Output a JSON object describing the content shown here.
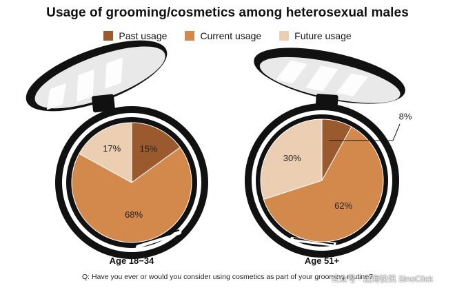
{
  "chart_data": {
    "type": "pie",
    "title": "Usage of grooming/cosmetics among heterosexual males",
    "legend": {
      "placement": "top-center",
      "entries": [
        {
          "key": "past",
          "label": "Past usage",
          "color": "#9b5a2e"
        },
        {
          "key": "current",
          "label": "Current usage",
          "color": "#d3894c"
        },
        {
          "key": "future",
          "label": "Future usage",
          "color": "#ecceb2"
        }
      ]
    },
    "charts": [
      {
        "label": "Age 18−34",
        "slices": [
          {
            "key": "past",
            "value": 15,
            "label": "15%"
          },
          {
            "key": "current",
            "value": 68,
            "label": "68%"
          },
          {
            "key": "future",
            "value": 17,
            "label": "17%"
          }
        ]
      },
      {
        "label": "Age 51+",
        "slices": [
          {
            "key": "past",
            "value": 8,
            "label": "8%"
          },
          {
            "key": "current",
            "value": 62,
            "label": "62%"
          },
          {
            "key": "future",
            "value": 30,
            "label": "30%"
          }
        ]
      }
    ],
    "question": "Q: Have you ever or would you consider using cosmetics as part of your grooming routine?"
  },
  "watermark": "公众号 · 出海快讯 SinoClick"
}
